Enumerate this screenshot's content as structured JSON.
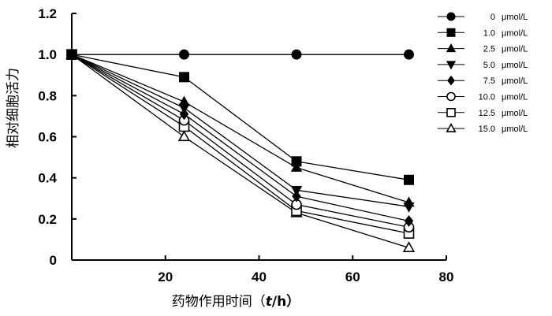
{
  "chart_data": {
    "type": "line",
    "xlabel": {
      "prefix": "药物作用时间（",
      "var": "t",
      "suffix": "/h）"
    },
    "ylabel": "相对细胞活力",
    "xlim": [
      0,
      80
    ],
    "ylim": [
      0,
      1.2
    ],
    "xticks": [
      "20",
      "40",
      "60",
      "80"
    ],
    "yticks": [
      "0",
      "0.2",
      "0.4",
      "0.6",
      "0.8",
      "1.0",
      "1.2"
    ],
    "x": [
      0,
      24,
      48,
      72
    ],
    "grid": false,
    "legend_position": "top-right",
    "legend_unit": "μmol/L",
    "series": [
      {
        "name": "0",
        "marker": "circle-filled",
        "values": [
          1.0,
          1.0,
          1.0,
          1.0
        ]
      },
      {
        "name": "1.0",
        "marker": "square-filled",
        "values": [
          1.0,
          0.89,
          0.48,
          0.39
        ]
      },
      {
        "name": "2.5",
        "marker": "triangle-up-filled",
        "values": [
          1.0,
          0.77,
          0.45,
          0.28
        ]
      },
      {
        "name": "5.0",
        "marker": "triangle-down-filled",
        "values": [
          1.0,
          0.74,
          0.34,
          0.26
        ]
      },
      {
        "name": "7.5",
        "marker": "diamond-filled",
        "values": [
          1.0,
          0.71,
          0.31,
          0.19
        ]
      },
      {
        "name": "10.0",
        "marker": "circle-open",
        "values": [
          1.0,
          0.68,
          0.27,
          0.16
        ]
      },
      {
        "name": "12.5",
        "marker": "square-open",
        "values": [
          1.0,
          0.65,
          0.24,
          0.13
        ]
      },
      {
        "name": "15.0",
        "marker": "triangle-up-open",
        "values": [
          1.0,
          0.6,
          0.23,
          0.06
        ]
      }
    ]
  }
}
